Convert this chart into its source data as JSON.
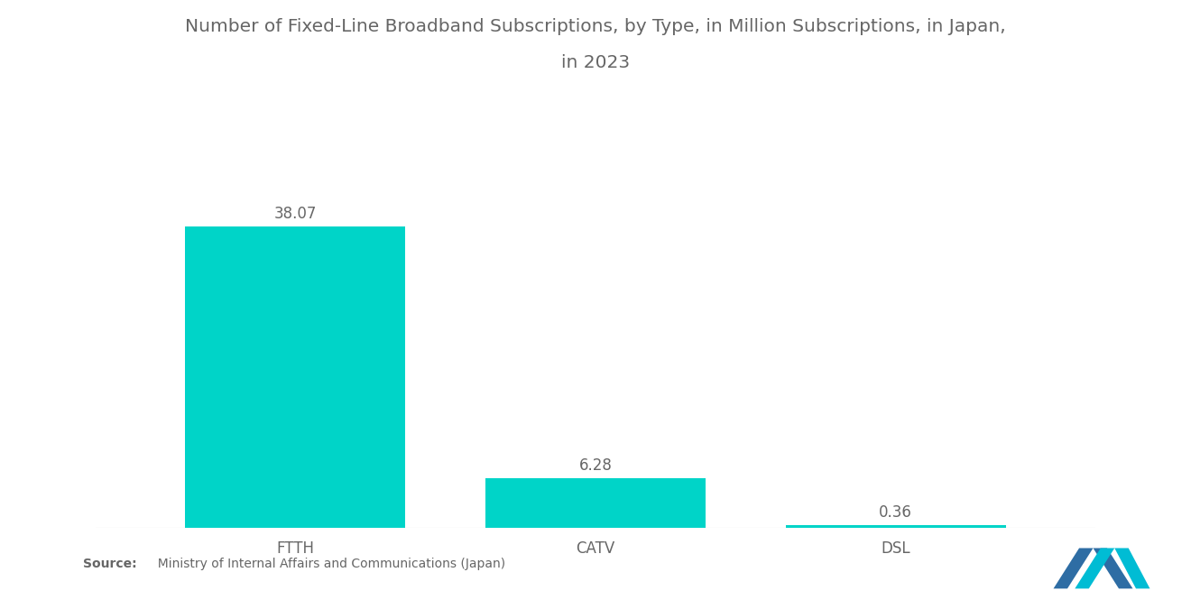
{
  "title_line1": "Number of Fixed-Line Broadband Subscriptions, by Type, in Million Subscriptions, in Japan,",
  "title_line2": "in 2023",
  "categories": [
    "FTTH",
    "CATV",
    "DSL"
  ],
  "values": [
    38.07,
    6.28,
    0.36
  ],
  "bar_color": "#00D4C8",
  "background_color": "#ffffff",
  "title_fontsize": 14.5,
  "label_fontsize": 12,
  "value_fontsize": 12,
  "source_bold": "Source:",
  "source_normal": "  Ministry of Internal Affairs and Communications (Japan)",
  "ylim": [
    0,
    44
  ],
  "bar_width": 0.22,
  "x_positions": [
    0.2,
    0.5,
    0.8
  ],
  "text_color": "#666666",
  "logo_blue": "#2e6da4",
  "logo_teal": "#00bcd4"
}
